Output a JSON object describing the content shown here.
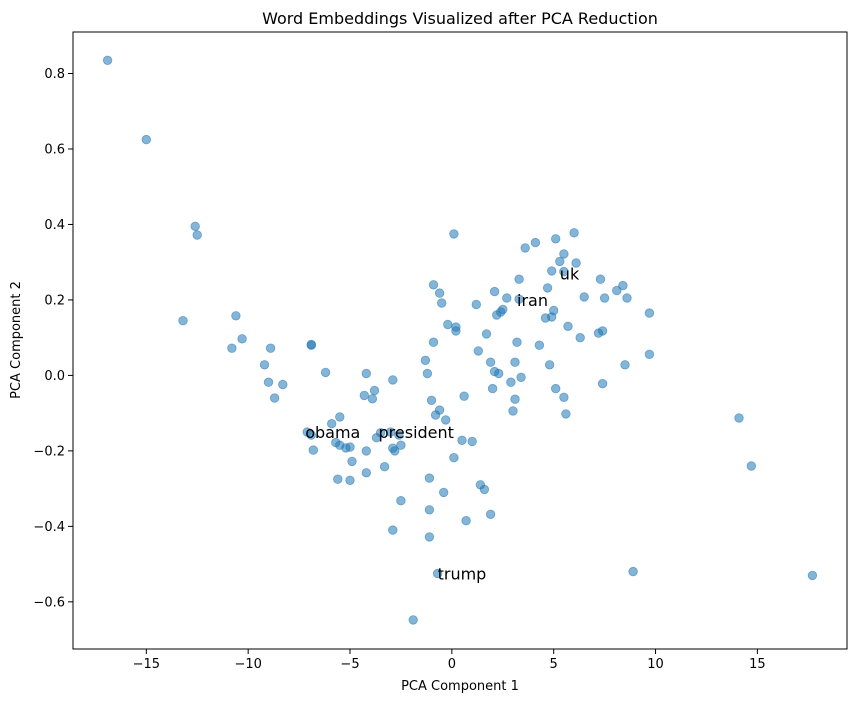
{
  "chart_data": {
    "type": "scatter",
    "title": "Word Embeddings Visualized after PCA Reduction",
    "xlabel": "PCA Component 1",
    "ylabel": "PCA Component 2",
    "xlim": [
      -18.6,
      19.4
    ],
    "ylim": [
      -0.725,
      0.91
    ],
    "xticks": [
      -15,
      -10,
      -5,
      0,
      5,
      10,
      15
    ],
    "xtick_labels": [
      "−15",
      "−10",
      "−5",
      "0",
      "5",
      "10",
      "15"
    ],
    "yticks": [
      -0.6,
      -0.4,
      -0.2,
      0.0,
      0.2,
      0.4,
      0.6,
      0.8
    ],
    "ytick_labels": [
      "−0.6",
      "−0.4",
      "−0.2",
      "0.0",
      "0.2",
      "0.4",
      "0.6",
      "0.8"
    ],
    "grid": false,
    "color": "#1f77b4",
    "points": [
      [
        -16.9,
        0.835
      ],
      [
        -15.0,
        0.625
      ],
      [
        -12.6,
        0.395
      ],
      [
        -12.5,
        0.372
      ],
      [
        -13.2,
        0.145
      ],
      [
        -10.6,
        0.158
      ],
      [
        -10.3,
        0.097
      ],
      [
        -10.8,
        0.072
      ],
      [
        -9.2,
        0.028
      ],
      [
        -8.9,
        0.072
      ],
      [
        -9.0,
        -0.018
      ],
      [
        -8.7,
        -0.06
      ],
      [
        -8.3,
        -0.024
      ],
      [
        -6.9,
        0.082
      ],
      [
        -6.9,
        0.08
      ],
      [
        -6.2,
        0.008
      ],
      [
        -7.1,
        -0.15
      ],
      [
        -6.9,
        -0.158
      ],
      [
        -6.8,
        -0.198
      ],
      [
        -5.9,
        -0.128
      ],
      [
        -5.5,
        -0.11
      ],
      [
        -5.7,
        -0.178
      ],
      [
        -5.5,
        -0.185
      ],
      [
        -5.2,
        -0.192
      ],
      [
        -5.0,
        -0.19
      ],
      [
        -4.9,
        -0.228
      ],
      [
        -5.6,
        -0.275
      ],
      [
        -5.0,
        -0.278
      ],
      [
        -4.2,
        0.005
      ],
      [
        -4.3,
        -0.053
      ],
      [
        -3.8,
        -0.04
      ],
      [
        -3.9,
        -0.062
      ],
      [
        -2.9,
        -0.012
      ],
      [
        -4.2,
        -0.2
      ],
      [
        -4.2,
        -0.258
      ],
      [
        -3.7,
        -0.165
      ],
      [
        -3.5,
        -0.152
      ],
      [
        -3.0,
        -0.15
      ],
      [
        -2.6,
        -0.158
      ],
      [
        -2.5,
        -0.185
      ],
      [
        -2.9,
        -0.193
      ],
      [
        -2.8,
        -0.2
      ],
      [
        -3.3,
        -0.242
      ],
      [
        -2.5,
        -0.332
      ],
      [
        -2.9,
        -0.41
      ],
      [
        -1.9,
        -0.648
      ],
      [
        -1.3,
        0.04
      ],
      [
        -1.2,
        0.005
      ],
      [
        -1.0,
        -0.066
      ],
      [
        -0.9,
        0.24
      ],
      [
        -0.6,
        0.218
      ],
      [
        -0.5,
        0.192
      ],
      [
        -0.2,
        0.135
      ],
      [
        0.2,
        0.128
      ],
      [
        0.2,
        0.118
      ],
      [
        0.1,
        0.375
      ],
      [
        -0.9,
        0.088
      ],
      [
        -0.8,
        -0.105
      ],
      [
        -0.6,
        -0.092
      ],
      [
        -0.3,
        -0.118
      ],
      [
        -0.4,
        -0.31
      ],
      [
        -1.1,
        -0.272
      ],
      [
        -1.1,
        -0.356
      ],
      [
        -1.1,
        -0.428
      ],
      [
        -0.7,
        -0.525
      ],
      [
        0.1,
        -0.218
      ],
      [
        0.5,
        -0.172
      ],
      [
        0.6,
        -0.055
      ],
      [
        0.7,
        -0.385
      ],
      [
        1.0,
        -0.175
      ],
      [
        1.2,
        0.188
      ],
      [
        1.3,
        0.065
      ],
      [
        1.4,
        -0.29
      ],
      [
        1.6,
        -0.302
      ],
      [
        1.9,
        -0.368
      ],
      [
        1.7,
        0.11
      ],
      [
        1.9,
        0.035
      ],
      [
        2.0,
        -0.035
      ],
      [
        2.1,
        0.01
      ],
      [
        2.1,
        0.222
      ],
      [
        2.2,
        0.16
      ],
      [
        2.3,
        0.005
      ],
      [
        2.4,
        0.168
      ],
      [
        2.5,
        0.175
      ],
      [
        2.7,
        0.205
      ],
      [
        2.9,
        -0.018
      ],
      [
        3.0,
        -0.094
      ],
      [
        3.1,
        -0.063
      ],
      [
        3.1,
        0.035
      ],
      [
        3.2,
        0.088
      ],
      [
        3.3,
        0.202
      ],
      [
        3.3,
        0.255
      ],
      [
        3.4,
        -0.005
      ],
      [
        3.6,
        0.338
      ],
      [
        4.1,
        0.352
      ],
      [
        4.3,
        0.08
      ],
      [
        4.6,
        0.152
      ],
      [
        4.7,
        0.232
      ],
      [
        4.8,
        0.028
      ],
      [
        4.9,
        0.155
      ],
      [
        4.9,
        0.277
      ],
      [
        5.0,
        0.172
      ],
      [
        5.1,
        0.362
      ],
      [
        5.1,
        -0.035
      ],
      [
        5.3,
        0.302
      ],
      [
        5.5,
        0.275
      ],
      [
        5.5,
        0.322
      ],
      [
        5.5,
        -0.058
      ],
      [
        5.6,
        -0.102
      ],
      [
        5.7,
        0.13
      ],
      [
        6.0,
        0.378
      ],
      [
        6.1,
        0.298
      ],
      [
        6.3,
        0.1
      ],
      [
        6.5,
        0.208
      ],
      [
        7.2,
        0.112
      ],
      [
        7.3,
        0.255
      ],
      [
        7.4,
        0.118
      ],
      [
        7.5,
        0.205
      ],
      [
        7.4,
        -0.022
      ],
      [
        8.1,
        0.225
      ],
      [
        8.4,
        0.238
      ],
      [
        8.5,
        0.028
      ],
      [
        8.6,
        0.205
      ],
      [
        9.7,
        0.165
      ],
      [
        9.7,
        0.056
      ],
      [
        8.9,
        -0.52
      ],
      [
        14.1,
        -0.113
      ],
      [
        14.7,
        -0.24
      ],
      [
        17.7,
        -0.53
      ]
    ],
    "annotations": [
      {
        "text": "uk",
        "x": 5.3,
        "y": 0.27
      },
      {
        "text": "iran",
        "x": 3.2,
        "y": 0.2
      },
      {
        "text": "obama",
        "x": -7.2,
        "y": -0.15
      },
      {
        "text": "president",
        "x": -3.6,
        "y": -0.15
      },
      {
        "text": "trump",
        "x": -0.7,
        "y": -0.525
      }
    ]
  }
}
